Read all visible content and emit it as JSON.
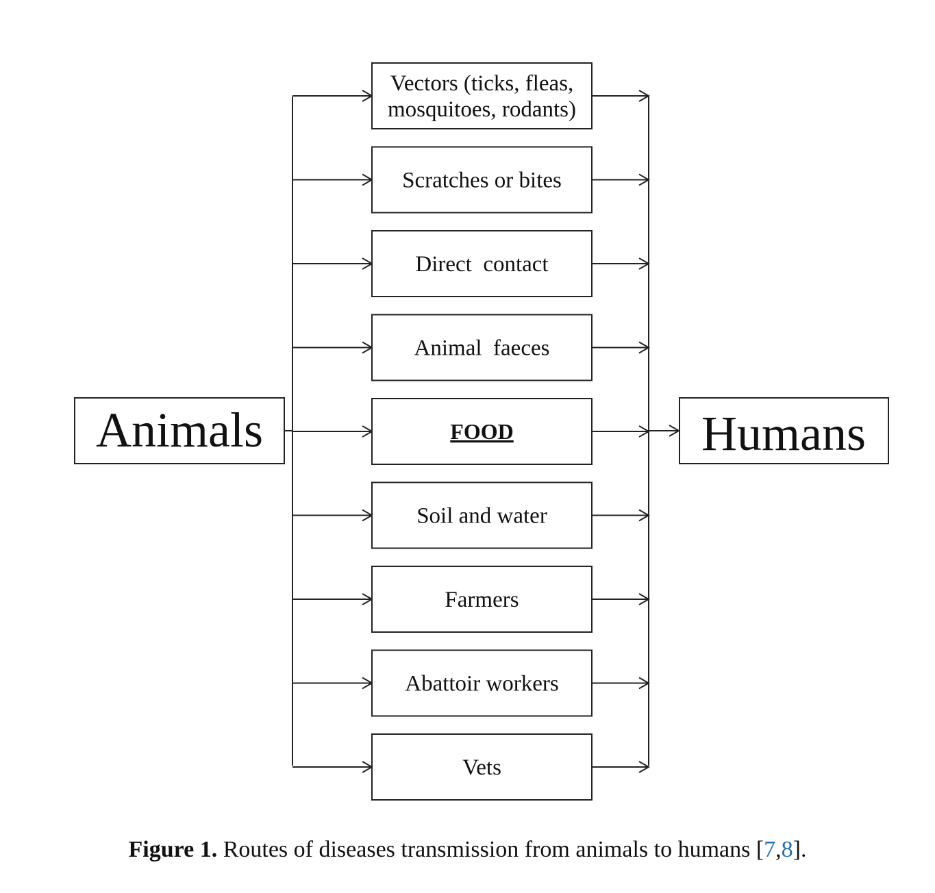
{
  "source_node": "Animals",
  "target_node": "Humans",
  "routes": [
    {
      "lines": [
        "Vectors (ticks, fleas,",
        "mosquitoes, rodants)"
      ],
      "emphasis": false
    },
    {
      "lines": [
        "Scratches or bites"
      ],
      "emphasis": false
    },
    {
      "lines": [
        "Direct  contact"
      ],
      "emphasis": false
    },
    {
      "lines": [
        "Animal  faeces"
      ],
      "emphasis": false
    },
    {
      "lines": [
        "FOOD"
      ],
      "emphasis": true
    },
    {
      "lines": [
        "Soil and water"
      ],
      "emphasis": false
    },
    {
      "lines": [
        "Farmers"
      ],
      "emphasis": false
    },
    {
      "lines": [
        "Abattoir workers"
      ],
      "emphasis": false
    },
    {
      "lines": [
        "Vets"
      ],
      "emphasis": false
    }
  ],
  "caption": {
    "label": "Figure 1.",
    "text": " Routes of diseases transmission from animals to humans [",
    "ref1": "7",
    "sep": ",",
    "ref2": "8",
    "end": "]."
  }
}
